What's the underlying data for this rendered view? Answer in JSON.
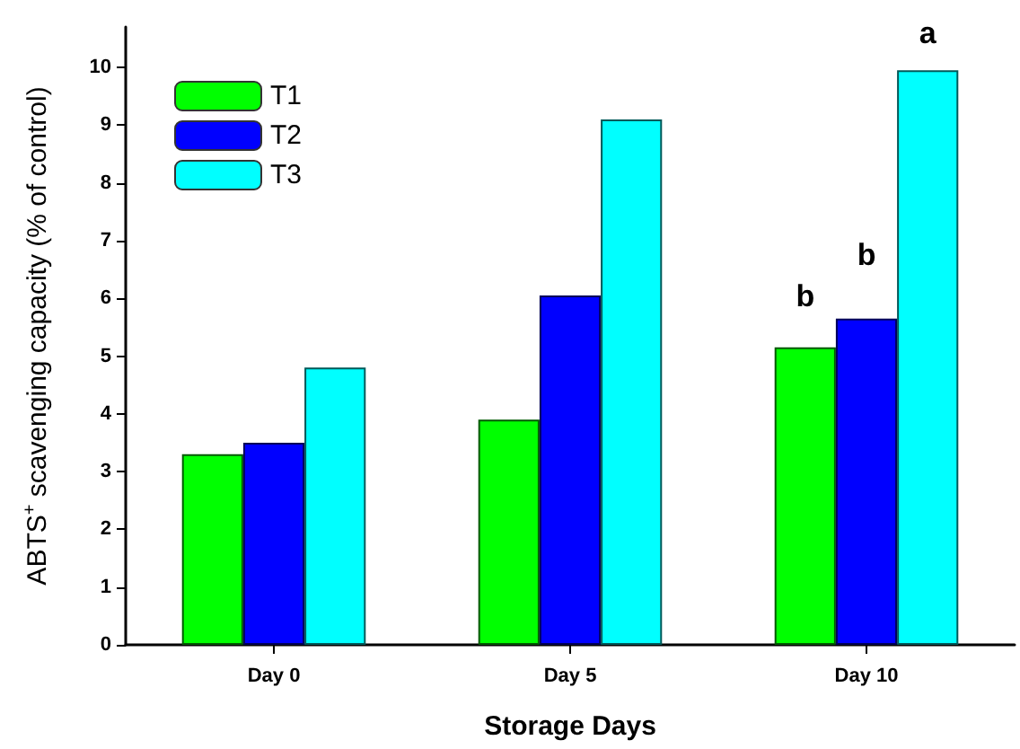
{
  "chart_data": {
    "type": "bar",
    "xlabel": "Storage Days",
    "ylabel": "ABTS$^{+}$ scavenging capacity (% of control)",
    "categories": [
      "Day 0",
      "Day 5",
      "Day 10"
    ],
    "series": [
      {
        "name": "T1",
        "color": "#00ff00",
        "values": [
          3.3,
          3.9,
          5.15
        ]
      },
      {
        "name": "T2",
        "color": "#0000ff",
        "values": [
          3.5,
          6.05,
          5.65
        ]
      },
      {
        "name": "T3",
        "color": "#00ffff",
        "values": [
          4.8,
          9.1,
          9.95
        ]
      }
    ],
    "ylim": [
      0,
      10.7
    ],
    "yticks": [
      0,
      1,
      2,
      3,
      4,
      5,
      6,
      7,
      8,
      9,
      10
    ],
    "annotations": [
      "b",
      "b",
      "a"
    ],
    "grid": false,
    "legend": "top left"
  }
}
